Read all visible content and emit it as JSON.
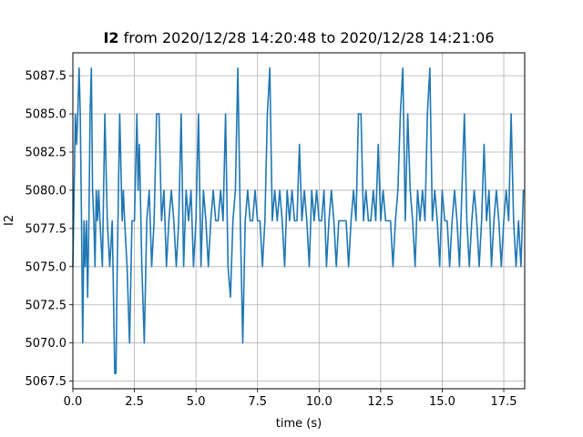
{
  "chart_data": {
    "type": "line",
    "title_signal": "I2",
    "title_rest": "from 2020/12/28 14:20:48 to 2020/12/28 14:21:06",
    "xlabel": "time (s)",
    "ylabel": "I2",
    "xlim": [
      0,
      18.35
    ],
    "ylim": [
      5067,
      5089
    ],
    "grid": true,
    "line_color": "#1f77b4",
    "xticks": [
      0.0,
      2.5,
      5.0,
      7.5,
      10.0,
      12.5,
      15.0,
      17.5
    ],
    "xtick_labels": [
      "0.0",
      "2.5",
      "5.0",
      "7.5",
      "10.0",
      "12.5",
      "15.0",
      "17.5"
    ],
    "yticks": [
      5067.5,
      5070.0,
      5072.5,
      5075.0,
      5077.5,
      5080.0,
      5082.5,
      5085.0,
      5087.5
    ],
    "ytick_labels": [
      "5067.5",
      "5070.0",
      "5072.5",
      "5075.0",
      "5077.5",
      "5080.0",
      "5082.5",
      "5085.0",
      "5087.5"
    ],
    "series": [
      {
        "x": [
          0.0,
          0.05,
          0.1,
          0.15,
          0.2,
          0.25,
          0.3,
          0.35,
          0.4,
          0.45,
          0.5,
          0.55,
          0.6,
          0.65,
          0.7,
          0.75,
          0.8,
          0.85,
          0.9,
          0.95,
          1.0,
          1.05,
          1.1,
          1.2,
          1.3,
          1.4,
          1.5,
          1.6,
          1.7,
          1.75,
          1.8,
          1.9,
          2.0,
          2.05,
          2.1,
          2.2,
          2.3,
          2.4,
          2.5,
          2.6,
          2.65,
          2.7,
          2.8,
          2.9,
          3.0,
          3.1,
          3.2,
          3.3,
          3.4,
          3.5,
          3.6,
          3.7,
          3.8,
          3.9,
          4.0,
          4.1,
          4.2,
          4.3,
          4.4,
          4.5,
          4.6,
          4.7,
          4.8,
          4.9,
          5.0,
          5.1,
          5.2,
          5.3,
          5.4,
          5.5,
          5.6,
          5.7,
          5.8,
          5.9,
          6.0,
          6.1,
          6.2,
          6.3,
          6.4,
          6.5,
          6.6,
          6.7,
          6.8,
          6.9,
          7.0,
          7.1,
          7.2,
          7.3,
          7.4,
          7.5,
          7.6,
          7.7,
          7.8,
          7.9,
          8.0,
          8.1,
          8.2,
          8.3,
          8.4,
          8.5,
          8.6,
          8.7,
          8.8,
          8.9,
          9.0,
          9.1,
          9.2,
          9.3,
          9.4,
          9.5,
          9.6,
          9.7,
          9.8,
          9.9,
          10.0,
          10.1,
          10.2,
          10.3,
          10.4,
          10.5,
          10.6,
          10.7,
          10.8,
          10.9,
          11.0,
          11.1,
          11.2,
          11.3,
          11.4,
          11.5,
          11.6,
          11.7,
          11.8,
          11.9,
          12.0,
          12.1,
          12.2,
          12.3,
          12.4,
          12.5,
          12.6,
          12.7,
          12.8,
          12.9,
          13.0,
          13.1,
          13.2,
          13.3,
          13.4,
          13.5,
          13.6,
          13.7,
          13.8,
          13.9,
          14.0,
          14.1,
          14.2,
          14.3,
          14.4,
          14.5,
          14.6,
          14.7,
          14.8,
          14.9,
          15.0,
          15.1,
          15.2,
          15.3,
          15.4,
          15.5,
          15.6,
          15.7,
          15.8,
          15.9,
          16.0,
          16.1,
          16.2,
          16.3,
          16.4,
          16.5,
          16.6,
          16.7,
          16.8,
          16.9,
          17.0,
          17.1,
          17.2,
          17.3,
          17.4,
          17.5,
          17.6,
          17.7,
          17.8,
          17.9,
          18.0,
          18.1,
          18.2,
          18.3
        ],
        "values": [
          5075,
          5080,
          5085,
          5083,
          5085,
          5088,
          5085,
          5078,
          5070,
          5078,
          5075,
          5078,
          5073,
          5078,
          5085,
          5088,
          5080,
          5078,
          5075,
          5080,
          5078,
          5080,
          5078,
          5075,
          5085,
          5078,
          5075,
          5078,
          5068,
          5068,
          5075,
          5085,
          5078,
          5080,
          5078,
          5075,
          5070,
          5078,
          5078,
          5085,
          5080,
          5083,
          5075,
          5070,
          5078,
          5080,
          5075,
          5078,
          5085,
          5085,
          5078,
          5080,
          5075,
          5078,
          5080,
          5078,
          5075,
          5078,
          5085,
          5075,
          5080,
          5078,
          5080,
          5075,
          5078,
          5085,
          5075,
          5080,
          5078,
          5075,
          5078,
          5080,
          5078,
          5078,
          5080,
          5078,
          5085,
          5075,
          5073,
          5078,
          5080,
          5088,
          5078,
          5070,
          5078,
          5080,
          5078,
          5078,
          5080,
          5078,
          5078,
          5075,
          5078,
          5085,
          5088,
          5078,
          5080,
          5078,
          5080,
          5078,
          5075,
          5080,
          5078,
          5080,
          5078,
          5078,
          5083,
          5078,
          5080,
          5078,
          5075,
          5080,
          5078,
          5080,
          5078,
          5078,
          5080,
          5075,
          5078,
          5080,
          5078,
          5075,
          5078,
          5078,
          5078,
          5078,
          5075,
          5078,
          5080,
          5078,
          5085,
          5085,
          5078,
          5080,
          5078,
          5078,
          5080,
          5078,
          5083,
          5078,
          5080,
          5078,
          5078,
          5078,
          5075,
          5078,
          5080,
          5085,
          5088,
          5078,
          5085,
          5080,
          5078,
          5075,
          5080,
          5078,
          5080,
          5078,
          5085,
          5088,
          5078,
          5080,
          5078,
          5075,
          5080,
          5078,
          5078,
          5075,
          5078,
          5080,
          5078,
          5075,
          5080,
          5085,
          5078,
          5075,
          5078,
          5080,
          5078,
          5075,
          5078,
          5083,
          5078,
          5080,
          5075,
          5078,
          5080,
          5078,
          5075,
          5078,
          5080,
          5078,
          5085,
          5078,
          5075,
          5078,
          5075,
          5080
        ]
      }
    ]
  }
}
